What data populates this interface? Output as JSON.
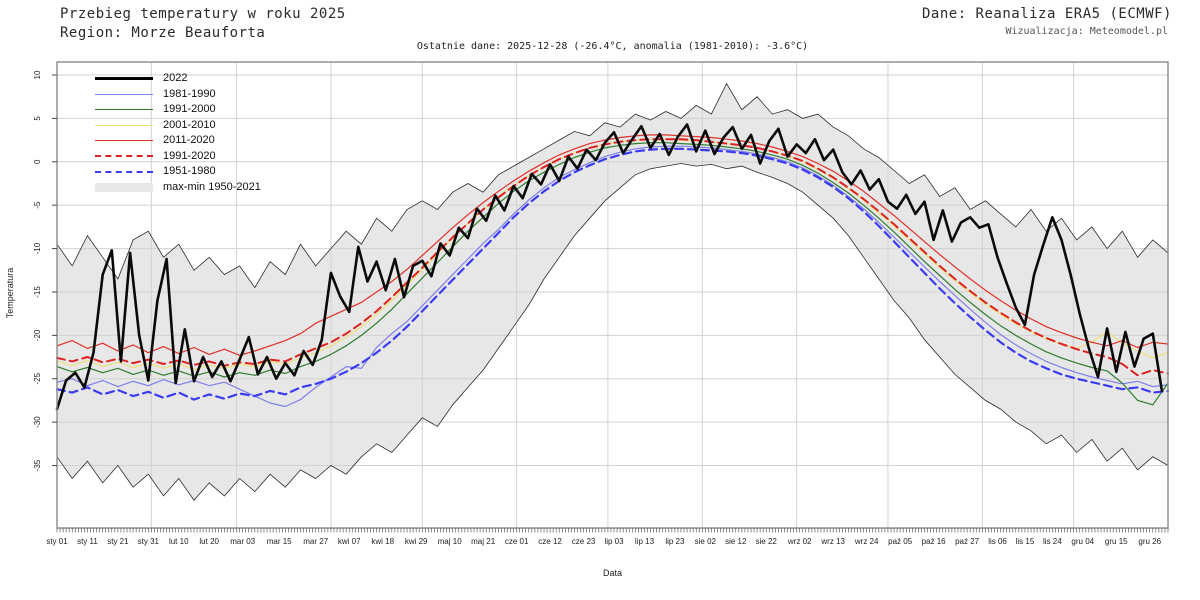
{
  "header": {
    "title": "Przebieg temperatury w roku 2025",
    "region": "Region: Morze Beauforta",
    "source": "Dane: Reanaliza ERA5 (ECMWF)",
    "visualization": "Wizualizacja: Meteomodel.pl",
    "subtitle": "Ostatnie dane: 2025-12-28 (-26.4°C, anomalia (1981-2010): -3.6°C)"
  },
  "legend": {
    "items": [
      {
        "label": "2022",
        "color": "#000000",
        "style": "solid-thick"
      },
      {
        "label": "1981-1990",
        "color": "#7f7fe8",
        "style": "solid"
      },
      {
        "label": "1991-2000",
        "color": "#2e7d2e",
        "style": "solid"
      },
      {
        "label": "2001-2010",
        "color": "#efe07a",
        "style": "solid"
      },
      {
        "label": "2011-2020",
        "color": "#e03028",
        "style": "solid"
      },
      {
        "label": "1991-2020",
        "color": "#dd2222",
        "style": "dashed"
      },
      {
        "label": "1951-1980",
        "color": "#3b3bf0",
        "style": "dashed"
      },
      {
        "label": "max-min 1950-2021",
        "color": "#e7e7e7",
        "style": "band"
      }
    ]
  },
  "axes": {
    "x_label": "Data",
    "y_label": "Temperatura",
    "y_ticks": [
      10,
      5,
      0,
      -5,
      -10,
      -15,
      -20,
      -25,
      -30,
      -35
    ],
    "x_ticks": [
      {
        "label": "sty 01",
        "day": 0
      },
      {
        "label": "sty 11",
        "day": 10
      },
      {
        "label": "sty 21",
        "day": 20
      },
      {
        "label": "sty 31",
        "day": 30
      },
      {
        "label": "lut 10",
        "day": 40
      },
      {
        "label": "lut 20",
        "day": 50
      },
      {
        "label": "mar 03",
        "day": 61
      },
      {
        "label": "mar 15",
        "day": 73
      },
      {
        "label": "mar 27",
        "day": 85
      },
      {
        "label": "kwi 07",
        "day": 96
      },
      {
        "label": "kwi 18",
        "day": 107
      },
      {
        "label": "kwi 29",
        "day": 118
      },
      {
        "label": "maj 10",
        "day": 129
      },
      {
        "label": "maj 21",
        "day": 140
      },
      {
        "label": "cze 01",
        "day": 151
      },
      {
        "label": "cze 12",
        "day": 162
      },
      {
        "label": "cze 23",
        "day": 173
      },
      {
        "label": "lip 03",
        "day": 183
      },
      {
        "label": "lip 13",
        "day": 193
      },
      {
        "label": "lip 23",
        "day": 203
      },
      {
        "label": "sie 02",
        "day": 213
      },
      {
        "label": "sie 12",
        "day": 223
      },
      {
        "label": "sie 22",
        "day": 233
      },
      {
        "label": "wrz 02",
        "day": 244
      },
      {
        "label": "wrz 13",
        "day": 255
      },
      {
        "label": "wrz 24",
        "day": 266
      },
      {
        "label": "paź 05",
        "day": 277
      },
      {
        "label": "paź 16",
        "day": 288
      },
      {
        "label": "paź 27",
        "day": 299
      },
      {
        "label": "lis 06",
        "day": 309
      },
      {
        "label": "lis 15",
        "day": 318
      },
      {
        "label": "lis 24",
        "day": 327
      },
      {
        "label": "gru 04",
        "day": 337
      },
      {
        "label": "gru 15",
        "day": 348
      },
      {
        "label": "gru 26",
        "day": 359
      }
    ],
    "month_start_days": [
      31,
      59,
      90,
      120,
      151,
      181,
      212,
      243,
      273,
      304,
      334
    ],
    "grid_color": "#d2d2d2",
    "frame_color": "#8c8c8c"
  },
  "chart_data": {
    "type": "line",
    "title": "Przebieg temperatury w roku 2025",
    "region": "Morze Beauforta",
    "x_unit": "day of year",
    "xlabel": "Data",
    "ylabel": "Temperatura",
    "ylim": [
      -42.2,
      11.5
    ],
    "xlim_days": [
      0,
      365
    ],
    "grid": true,
    "legend_position": "top-left",
    "last_data": {
      "date": "2025-12-28",
      "value_c": -26.4,
      "anomaly_1981_2010_c": -3.6
    },
    "band": {
      "name": "max-min 1950-2021",
      "fill": "#e7e7e7",
      "edge_color": "#2b2b2b",
      "day_step": 5,
      "top": [
        -9.5,
        -12.0,
        -8.5,
        -11.0,
        -13.5,
        -9.0,
        -8.0,
        -11.0,
        -9.5,
        -12.5,
        -11.0,
        -13.0,
        -12.0,
        -14.5,
        -11.5,
        -13.0,
        -9.5,
        -12.0,
        -10.0,
        -8.0,
        -9.5,
        -6.5,
        -8.0,
        -5.5,
        -4.5,
        -5.5,
        -3.5,
        -2.5,
        -3.5,
        -1.5,
        -0.5,
        0.5,
        1.5,
        2.5,
        3.5,
        3.0,
        4.5,
        4.0,
        5.5,
        4.8,
        5.8,
        5.0,
        6.5,
        5.5,
        9.0,
        6.0,
        7.5,
        5.5,
        6.0,
        5.0,
        5.5,
        4.0,
        3.0,
        1.5,
        0.5,
        -1.0,
        -2.5,
        -1.5,
        -4.0,
        -3.0,
        -5.5,
        -4.5,
        -6.0,
        -7.5,
        -5.5,
        -8.0,
        -6.5,
        -9.0,
        -7.5,
        -10.0,
        -8.0,
        -11.0,
        -9.0,
        -10.5
      ],
      "bottom": [
        -34.0,
        -36.5,
        -34.5,
        -37.0,
        -35.0,
        -37.5,
        -36.0,
        -38.5,
        -36.5,
        -39.0,
        -37.0,
        -38.5,
        -36.5,
        -38.0,
        -36.0,
        -37.5,
        -35.5,
        -36.5,
        -35.0,
        -36.0,
        -34.0,
        -32.5,
        -33.5,
        -31.5,
        -29.5,
        -30.5,
        -28.0,
        -26.0,
        -24.0,
        -21.5,
        -19.0,
        -16.5,
        -13.5,
        -11.0,
        -8.5,
        -6.5,
        -4.5,
        -3.0,
        -1.5,
        -0.8,
        -0.5,
        -0.2,
        -0.5,
        -0.3,
        -0.8,
        -0.5,
        -1.2,
        -1.8,
        -2.5,
        -3.5,
        -5.0,
        -6.5,
        -8.5,
        -11.0,
        -13.5,
        -16.0,
        -18.0,
        -20.5,
        -22.5,
        -24.5,
        -26.0,
        -27.5,
        -28.5,
        -30.0,
        -31.0,
        -32.5,
        -31.5,
        -33.5,
        -32.0,
        -34.5,
        -33.0,
        -35.5,
        -34.0,
        -35.0
      ]
    },
    "series": [
      {
        "name": "1981-1990",
        "color": "#7f7fe8",
        "style": "solid",
        "width": 1.2,
        "day_step": 5,
        "values": [
          -25.4,
          -25.0,
          -25.8,
          -25.2,
          -25.9,
          -25.3,
          -25.8,
          -25.1,
          -25.7,
          -25.2,
          -25.8,
          -25.4,
          -26.2,
          -27.0,
          -27.8,
          -28.2,
          -27.4,
          -26.0,
          -24.8,
          -23.6,
          -23.8,
          -21.4,
          -19.8,
          -18.4,
          -16.6,
          -14.8,
          -13.0,
          -11.2,
          -9.4,
          -7.8,
          -6.0,
          -4.4,
          -3.0,
          -1.8,
          -0.9,
          -0.1,
          0.6,
          1.1,
          1.5,
          1.7,
          1.8,
          1.8,
          1.7,
          1.6,
          1.4,
          1.2,
          0.9,
          0.5,
          0.0,
          -0.7,
          -1.6,
          -2.7,
          -4.0,
          -5.4,
          -7.0,
          -8.7,
          -10.4,
          -12.1,
          -13.8,
          -15.4,
          -17.0,
          -18.5,
          -19.9,
          -21.1,
          -22.1,
          -23.0,
          -23.7,
          -24.3,
          -24.8,
          -25.2,
          -25.6,
          -25.3,
          -25.9,
          -25.7
        ]
      },
      {
        "name": "1991-2000",
        "color": "#2e7d2e",
        "style": "solid",
        "width": 1.2,
        "day_step": 5,
        "values": [
          -23.6,
          -24.2,
          -23.7,
          -24.3,
          -23.8,
          -24.5,
          -24.0,
          -24.6,
          -24.1,
          -24.7,
          -24.2,
          -24.8,
          -24.3,
          -24.6,
          -24.0,
          -24.4,
          -23.6,
          -23.0,
          -22.2,
          -21.2,
          -20.0,
          -18.6,
          -17.0,
          -15.2,
          -13.4,
          -11.6,
          -9.8,
          -8.0,
          -6.4,
          -4.8,
          -3.4,
          -2.2,
          -1.2,
          -0.3,
          0.5,
          1.1,
          1.6,
          1.9,
          2.1,
          2.2,
          2.2,
          2.1,
          2.0,
          1.9,
          1.7,
          1.5,
          1.2,
          0.8,
          0.3,
          -0.4,
          -1.3,
          -2.4,
          -3.6,
          -5.0,
          -6.5,
          -8.1,
          -9.8,
          -11.5,
          -13.1,
          -14.7,
          -16.2,
          -17.6,
          -18.9,
          -20.0,
          -21.0,
          -21.9,
          -22.6,
          -23.2,
          -23.7,
          -24.1,
          -25.5,
          -27.5,
          -28.0,
          -25.5
        ]
      },
      {
        "name": "2001-2010",
        "color": "#efe07a",
        "style": "solid",
        "width": 1.2,
        "day_step": 5,
        "values": [
          -23.0,
          -23.5,
          -22.9,
          -23.6,
          -23.1,
          -23.7,
          -23.2,
          -23.8,
          -23.3,
          -23.9,
          -23.4,
          -23.8,
          -23.3,
          -23.6,
          -23.0,
          -23.3,
          -22.6,
          -22.0,
          -21.2,
          -20.2,
          -19.0,
          -17.6,
          -16.0,
          -14.2,
          -12.4,
          -10.6,
          -8.8,
          -7.1,
          -5.5,
          -4.0,
          -2.7,
          -1.6,
          -0.6,
          0.3,
          1.0,
          1.6,
          2.0,
          2.3,
          2.5,
          2.6,
          2.6,
          2.5,
          2.4,
          2.3,
          2.1,
          1.9,
          1.6,
          1.2,
          0.7,
          0.0,
          -0.9,
          -1.9,
          -3.1,
          -4.4,
          -5.9,
          -7.4,
          -9.0,
          -10.6,
          -12.2,
          -13.7,
          -15.1,
          -16.4,
          -17.6,
          -18.7,
          -19.6,
          -20.4,
          -21.0,
          -21.5,
          -20.8,
          -19.6,
          -20.9,
          -21.8,
          -22.6,
          -22.0
        ]
      },
      {
        "name": "2011-2020",
        "color": "#e03028",
        "style": "solid",
        "width": 1.2,
        "day_step": 5,
        "values": [
          -21.2,
          -20.6,
          -21.5,
          -20.9,
          -21.8,
          -21.1,
          -22.0,
          -21.3,
          -22.1,
          -21.4,
          -22.2,
          -21.6,
          -22.3,
          -21.8,
          -21.2,
          -20.6,
          -19.8,
          -18.6,
          -17.8,
          -17.0,
          -16.2,
          -15.0,
          -13.8,
          -12.4,
          -10.8,
          -9.2,
          -7.6,
          -6.1,
          -4.7,
          -3.4,
          -2.2,
          -1.1,
          -0.1,
          0.8,
          1.5,
          2.1,
          2.5,
          2.8,
          3.0,
          3.1,
          3.1,
          3.0,
          2.9,
          2.8,
          2.6,
          2.4,
          2.1,
          1.7,
          1.2,
          0.6,
          -0.2,
          -1.1,
          -2.2,
          -3.4,
          -4.8,
          -6.2,
          -7.7,
          -9.2,
          -10.7,
          -12.1,
          -13.5,
          -14.8,
          -16.0,
          -17.1,
          -18.1,
          -19.0,
          -19.7,
          -20.3,
          -20.8,
          -21.2,
          -20.6,
          -21.4,
          -20.8,
          -21.0
        ]
      },
      {
        "name": "1991-2020",
        "color": "#dd2222",
        "style": "dashed",
        "width": 2.0,
        "day_step": 5,
        "values": [
          -22.6,
          -23.0,
          -22.5,
          -23.1,
          -22.7,
          -23.2,
          -22.8,
          -23.3,
          -22.9,
          -23.4,
          -23.0,
          -23.5,
          -23.1,
          -23.3,
          -22.8,
          -23.0,
          -22.2,
          -21.5,
          -20.8,
          -19.8,
          -18.6,
          -17.2,
          -15.6,
          -13.9,
          -12.2,
          -10.4,
          -8.7,
          -7.1,
          -5.5,
          -4.1,
          -2.8,
          -1.6,
          -0.6,
          0.3,
          1.0,
          1.6,
          2.0,
          2.3,
          2.5,
          2.6,
          2.6,
          2.6,
          2.5,
          2.3,
          2.1,
          1.9,
          1.6,
          1.2,
          0.7,
          0.1,
          -0.8,
          -1.8,
          -3.0,
          -4.3,
          -5.7,
          -7.2,
          -8.8,
          -10.4,
          -12.0,
          -13.5,
          -14.9,
          -16.2,
          -17.4,
          -18.5,
          -19.5,
          -20.3,
          -21.0,
          -21.6,
          -22.1,
          -22.5,
          -23.3,
          -24.6,
          -24.0,
          -24.4
        ]
      },
      {
        "name": "1951-1980",
        "color": "#3b3bf0",
        "style": "dashed",
        "width": 2.2,
        "day_step": 5,
        "values": [
          -26.2,
          -26.6,
          -26.0,
          -26.8,
          -26.3,
          -27.0,
          -26.5,
          -27.2,
          -26.6,
          -27.4,
          -26.8,
          -27.3,
          -26.7,
          -27.0,
          -26.4,
          -26.8,
          -26.0,
          -25.6,
          -25.0,
          -24.2,
          -23.2,
          -22.0,
          -20.6,
          -19.0,
          -17.2,
          -15.4,
          -13.6,
          -11.8,
          -10.0,
          -8.2,
          -6.4,
          -4.8,
          -3.4,
          -2.2,
          -1.2,
          -0.4,
          0.3,
          0.8,
          1.2,
          1.4,
          1.5,
          1.5,
          1.4,
          1.3,
          1.2,
          1.0,
          0.7,
          0.3,
          -0.2,
          -0.9,
          -1.8,
          -2.9,
          -4.2,
          -5.7,
          -7.4,
          -9.2,
          -11.0,
          -12.8,
          -14.6,
          -16.3,
          -17.9,
          -19.4,
          -20.8,
          -22.0,
          -23.0,
          -23.8,
          -24.5,
          -25.0,
          -25.4,
          -25.8,
          -26.2,
          -26.0,
          -26.6,
          -26.4
        ]
      },
      {
        "name": "2022",
        "color": "#0a0a0a",
        "style": "solid",
        "width": 2.6,
        "day_step": 3,
        "values": [
          -28.5,
          -25.2,
          -24.3,
          -26.0,
          -22.0,
          -13.0,
          -10.2,
          -23.0,
          -10.5,
          -20.0,
          -25.2,
          -16.0,
          -11.2,
          -25.5,
          -19.3,
          -25.3,
          -22.5,
          -24.8,
          -23.0,
          -25.3,
          -22.8,
          -20.2,
          -24.5,
          -22.5,
          -25.0,
          -23.2,
          -24.6,
          -21.8,
          -23.4,
          -20.5,
          -12.8,
          -15.5,
          -17.3,
          -9.8,
          -13.8,
          -11.5,
          -14.8,
          -11.2,
          -15.6,
          -12.0,
          -11.4,
          -13.2,
          -9.4,
          -10.8,
          -7.6,
          -8.8,
          -5.4,
          -6.8,
          -3.9,
          -5.6,
          -2.8,
          -4.2,
          -1.4,
          -2.6,
          -0.3,
          -2.2,
          0.6,
          -0.8,
          1.4,
          0.2,
          2.2,
          3.4,
          1.0,
          2.6,
          4.1,
          1.6,
          3.2,
          0.8,
          2.9,
          4.3,
          1.2,
          3.6,
          0.9,
          2.8,
          4.0,
          1.5,
          3.1,
          -0.2,
          2.4,
          3.8,
          0.6,
          2.0,
          1.0,
          2.6,
          0.2,
          1.4,
          -1.2,
          -2.6,
          -1.0,
          -3.2,
          -2.0,
          -4.6,
          -5.4,
          -3.8,
          -6.0,
          -4.6,
          -9.0,
          -5.6,
          -9.2,
          -7.0,
          -6.4,
          -7.6,
          -7.2,
          -11.0,
          -14.0,
          -16.8,
          -18.8,
          -13.0,
          -9.6,
          -6.4,
          -9.0,
          -13.0,
          -17.5,
          -21.5,
          -24.8,
          -19.2,
          -24.2,
          -19.6,
          -23.6,
          -20.4,
          -19.8,
          -26.4
        ]
      }
    ]
  }
}
